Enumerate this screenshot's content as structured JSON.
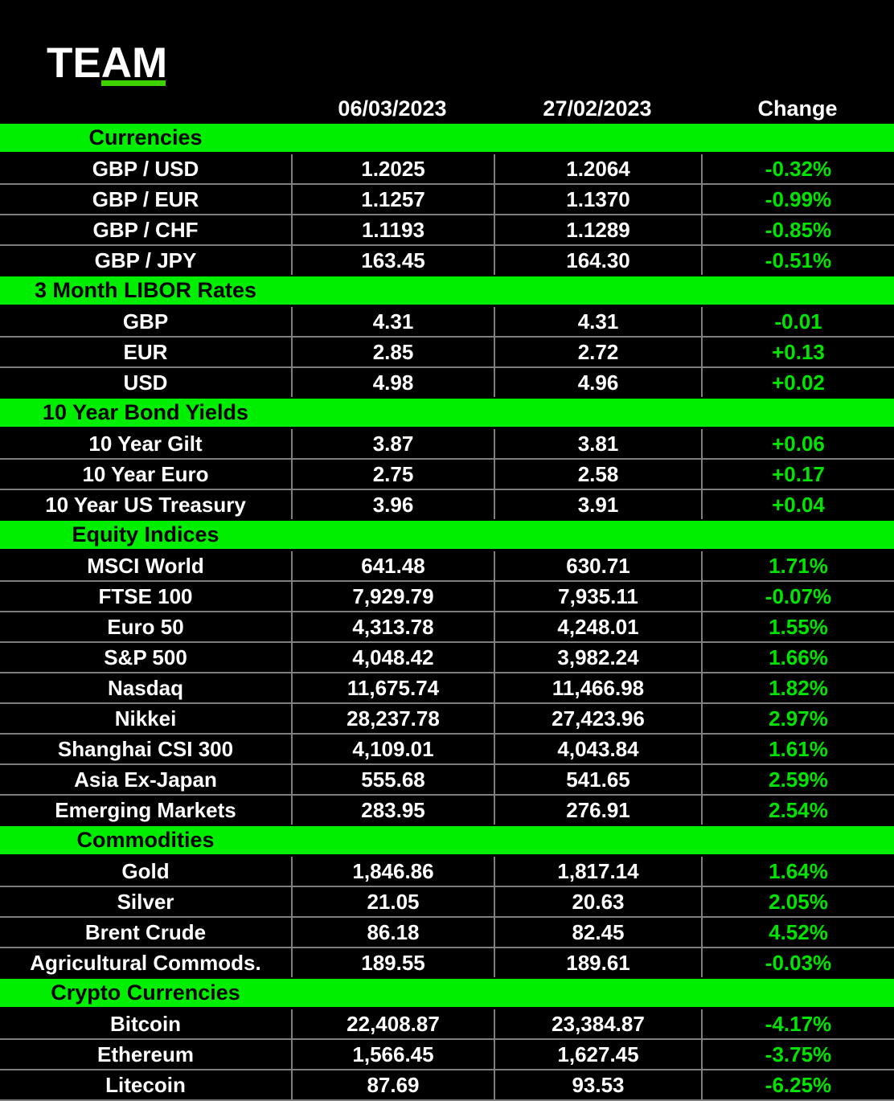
{
  "logo": {
    "text": "TEAM"
  },
  "colors": {
    "background": "#000000",
    "section_bar_green": "#00ef00",
    "change_text_green": "#00e400",
    "logo_underline_green": "#3dd200",
    "grid_line_gray": "#7f7f7f",
    "text_white": "#ffffff",
    "section_title_black": "#000000"
  },
  "chart_data": {
    "type": "table",
    "columns": [
      "",
      "06/03/2023",
      "27/02/2023",
      "Change"
    ],
    "sections": [
      {
        "title": "Currencies",
        "rows": [
          {
            "label": "GBP / USD",
            "current": "1.2025",
            "previous": "1.2064",
            "change": "-0.32%"
          },
          {
            "label": "GBP / EUR",
            "current": "1.1257",
            "previous": "1.1370",
            "change": "-0.99%"
          },
          {
            "label": "GBP / CHF",
            "current": "1.1193",
            "previous": "1.1289",
            "change": "-0.85%"
          },
          {
            "label": "GBP / JPY",
            "current": "163.45",
            "previous": "164.30",
            "change": "-0.51%"
          }
        ]
      },
      {
        "title": "3 Month LIBOR Rates",
        "rows": [
          {
            "label": "GBP",
            "current": "4.31",
            "previous": "4.31",
            "change": "-0.01"
          },
          {
            "label": "EUR",
            "current": "2.85",
            "previous": "2.72",
            "change": "+0.13"
          },
          {
            "label": "USD",
            "current": "4.98",
            "previous": "4.96",
            "change": "+0.02"
          }
        ]
      },
      {
        "title": "10 Year Bond Yields",
        "rows": [
          {
            "label": "10 Year Gilt",
            "current": "3.87",
            "previous": "3.81",
            "change": "+0.06"
          },
          {
            "label": "10 Year Euro",
            "current": "2.75",
            "previous": "2.58",
            "change": "+0.17"
          },
          {
            "label": "10 Year US Treasury",
            "current": "3.96",
            "previous": "3.91",
            "change": "+0.04"
          }
        ]
      },
      {
        "title": "Equity Indices",
        "rows": [
          {
            "label": "MSCI World",
            "current": "641.48",
            "previous": "630.71",
            "change": "1.71%"
          },
          {
            "label": "FTSE 100",
            "current": "7,929.79",
            "previous": "7,935.11",
            "change": "-0.07%"
          },
          {
            "label": "Euro 50",
            "current": "4,313.78",
            "previous": "4,248.01",
            "change": "1.55%"
          },
          {
            "label": "S&P 500",
            "current": "4,048.42",
            "previous": "3,982.24",
            "change": "1.66%"
          },
          {
            "label": "Nasdaq",
            "current": "11,675.74",
            "previous": "11,466.98",
            "change": "1.82%"
          },
          {
            "label": "Nikkei",
            "current": "28,237.78",
            "previous": "27,423.96",
            "change": "2.97%"
          },
          {
            "label": "Shanghai CSI 300",
            "current": "4,109.01",
            "previous": "4,043.84",
            "change": "1.61%"
          },
          {
            "label": "Asia Ex-Japan",
            "current": "555.68",
            "previous": "541.65",
            "change": "2.59%"
          },
          {
            "label": "Emerging Markets",
            "current": "283.95",
            "previous": "276.91",
            "change": "2.54%"
          }
        ]
      },
      {
        "title": "Commodities",
        "rows": [
          {
            "label": "Gold",
            "current": "1,846.86",
            "previous": "1,817.14",
            "change": "1.64%"
          },
          {
            "label": "Silver",
            "current": "21.05",
            "previous": "20.63",
            "change": "2.05%"
          },
          {
            "label": "Brent Crude",
            "current": "86.18",
            "previous": "82.45",
            "change": "4.52%"
          },
          {
            "label": "Agricultural Commods.",
            "current": "189.55",
            "previous": "189.61",
            "change": "-0.03%"
          }
        ]
      },
      {
        "title": "Crypto Currencies",
        "rows": [
          {
            "label": "Bitcoin",
            "current": "22,408.87",
            "previous": "23,384.87",
            "change": "-4.17%"
          },
          {
            "label": "Ethereum",
            "current": "1,566.45",
            "previous": "1,627.45",
            "change": "-3.75%"
          },
          {
            "label": "Litecoin",
            "current": "87.69",
            "previous": "93.53",
            "change": "-6.25%"
          }
        ]
      }
    ]
  }
}
